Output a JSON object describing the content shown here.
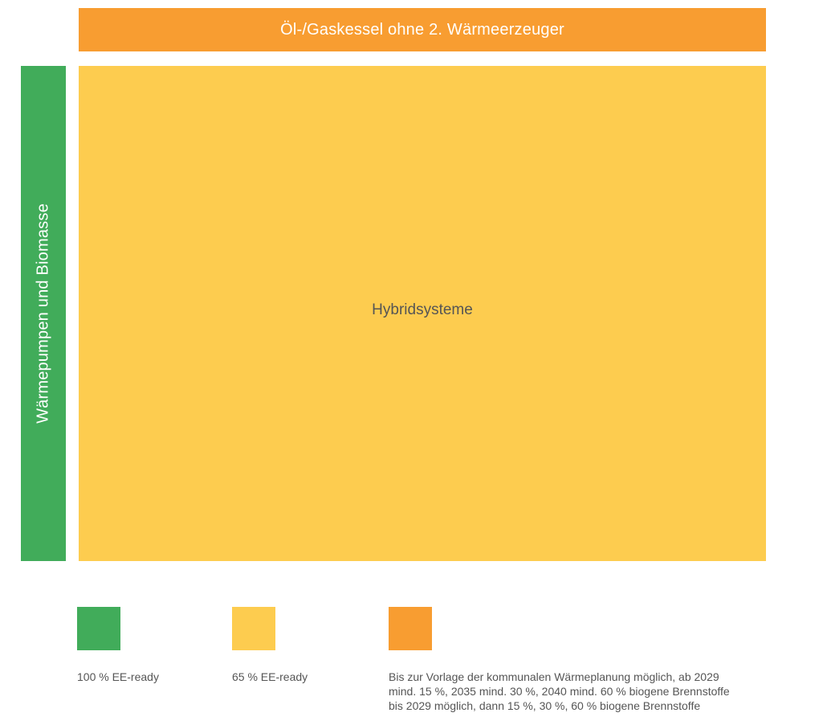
{
  "colors": {
    "green": "#41AC5A",
    "yellow": "#FDCC4F",
    "orange": "#F89D31"
  },
  "diagram": {
    "top_bar_label": "Öl-/Gaskessel ohne 2. Wärmeerzeuger",
    "left_bar_label": "Wärmepumpen und Biomasse",
    "main_block_label": "Hybridsysteme"
  },
  "legend": [
    {
      "color": "#41AC5A",
      "text": "100 % EE-ready"
    },
    {
      "color": "#FDCC4F",
      "text": "65 % EE-ready"
    },
    {
      "color": "#F89D31",
      "lines": [
        "Bis zur Vorlage der kommunalen Wärmeplanung möglich, ab 2029",
        "mind. 15 %, 2035 mind. 30 %, 2040 mind. 60 % biogene Brennstoffe",
        "bis 2029 möglich, dann 15 %, 30 %, 60 % biogene Brennstoffe"
      ]
    }
  ]
}
